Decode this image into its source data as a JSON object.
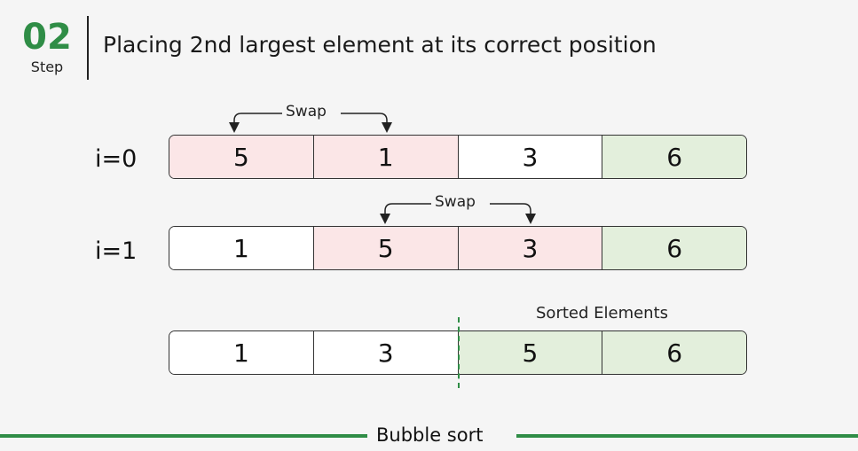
{
  "step": {
    "number": "02",
    "label": "Step"
  },
  "title": "Placing 2nd largest element at its correct position",
  "rows": [
    {
      "label": "i=0",
      "swap_label": "Swap",
      "cells": [
        {
          "value": "5",
          "state": "swap"
        },
        {
          "value": "1",
          "state": "swap"
        },
        {
          "value": "3",
          "state": "normal"
        },
        {
          "value": "6",
          "state": "sorted"
        }
      ]
    },
    {
      "label": "i=1",
      "swap_label": "Swap",
      "cells": [
        {
          "value": "1",
          "state": "normal"
        },
        {
          "value": "5",
          "state": "swap"
        },
        {
          "value": "3",
          "state": "swap"
        },
        {
          "value": "6",
          "state": "sorted"
        }
      ]
    },
    {
      "label": "",
      "cells": [
        {
          "value": "1",
          "state": "normal"
        },
        {
          "value": "3",
          "state": "normal"
        },
        {
          "value": "5",
          "state": "sorted"
        },
        {
          "value": "6",
          "state": "sorted"
        }
      ]
    }
  ],
  "sorted_label": "Sorted Elements",
  "footer": "Bubble sort",
  "colors": {
    "accent": "#2f8d46",
    "swap": "#fbe6e7",
    "sorted": "#e3efdc"
  }
}
